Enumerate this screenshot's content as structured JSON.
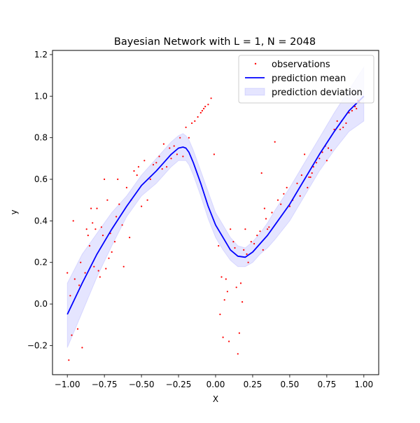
{
  "chart_data": {
    "type": "scatter",
    "title": "Bayesian Network with L = 1, N = 2048",
    "xlabel": "X",
    "ylabel": "y",
    "xlim": [
      -1.1,
      1.1
    ],
    "ylim": [
      -0.34,
      1.22
    ],
    "xticks": [
      -1.0,
      -0.75,
      -0.5,
      -0.25,
      0.0,
      0.25,
      0.5,
      0.75,
      1.0
    ],
    "xtick_labels": [
      "−1.00",
      "−0.75",
      "−0.50",
      "−0.25",
      "0.00",
      "0.25",
      "0.50",
      "0.75",
      "1.00"
    ],
    "yticks": [
      -0.2,
      0.0,
      0.2,
      0.4,
      0.6,
      0.8,
      1.0,
      1.2
    ],
    "ytick_labels": [
      "−0.2",
      "0.0",
      "0.2",
      "0.4",
      "0.6",
      "0.8",
      "1.0",
      "1.2"
    ],
    "grid": false,
    "legend_position": "upper-right",
    "colors": {
      "observations": "#ff0000",
      "mean": "#0000ff",
      "deviation": "#0000ff"
    },
    "series": [
      {
        "name": "observations",
        "kind": "scatter",
        "x": [
          -1.0,
          -0.99,
          -0.98,
          -0.97,
          -0.96,
          -0.95,
          -0.93,
          -0.92,
          -0.91,
          -0.9,
          -0.88,
          -0.87,
          -0.86,
          -0.85,
          -0.84,
          -0.83,
          -0.82,
          -0.81,
          -0.8,
          -0.79,
          -0.78,
          -0.77,
          -0.76,
          -0.75,
          -0.74,
          -0.73,
          -0.72,
          -0.71,
          -0.7,
          -0.68,
          -0.67,
          -0.66,
          -0.65,
          -0.63,
          -0.62,
          -0.6,
          -0.58,
          -0.57,
          -0.55,
          -0.53,
          -0.52,
          -0.5,
          -0.48,
          -0.46,
          -0.44,
          -0.42,
          -0.4,
          -0.38,
          -0.36,
          -0.35,
          -0.33,
          -0.31,
          -0.3,
          -0.28,
          -0.26,
          -0.24,
          -0.22,
          -0.2,
          -0.18,
          -0.16,
          -0.14,
          -0.12,
          -0.1,
          -0.09,
          -0.08,
          -0.07,
          -0.05,
          -0.03,
          -0.01,
          0.02,
          0.03,
          0.04,
          0.05,
          0.06,
          0.07,
          0.08,
          0.09,
          0.1,
          0.12,
          0.13,
          0.14,
          0.15,
          0.16,
          0.17,
          0.18,
          0.19,
          0.2,
          0.21,
          0.22,
          0.24,
          0.26,
          0.28,
          0.3,
          0.31,
          0.32,
          0.33,
          0.34,
          0.35,
          0.36,
          0.38,
          0.4,
          0.42,
          0.44,
          0.46,
          0.48,
          0.5,
          0.52,
          0.55,
          0.57,
          0.58,
          0.6,
          0.62,
          0.63,
          0.64,
          0.65,
          0.66,
          0.68,
          0.7,
          0.72,
          0.74,
          0.75,
          0.76,
          0.78,
          0.8,
          0.82,
          0.84,
          0.85,
          0.86,
          0.88,
          0.9,
          0.92,
          0.94,
          0.95,
          0.96,
          0.97
        ],
        "y": [
          0.15,
          -0.27,
          0.04,
          -0.15,
          0.4,
          0.12,
          -0.12,
          0.09,
          0.2,
          -0.21,
          0.15,
          0.36,
          0.33,
          0.28,
          0.46,
          0.39,
          0.18,
          0.36,
          0.46,
          0.16,
          0.13,
          0.37,
          0.33,
          0.6,
          0.17,
          0.5,
          0.22,
          0.34,
          0.25,
          0.3,
          0.42,
          0.6,
          0.48,
          0.38,
          0.18,
          0.56,
          0.32,
          0.5,
          0.64,
          0.62,
          0.66,
          0.47,
          0.69,
          0.5,
          0.6,
          0.67,
          0.68,
          0.71,
          0.65,
          0.77,
          0.66,
          0.75,
          0.7,
          0.76,
          0.72,
          0.8,
          0.71,
          0.85,
          0.8,
          0.87,
          0.88,
          0.9,
          0.92,
          0.93,
          0.94,
          0.95,
          0.96,
          0.99,
          0.72,
          0.28,
          -0.05,
          0.13,
          -0.16,
          0.02,
          0.12,
          0.06,
          -0.18,
          0.36,
          0.3,
          0.27,
          0.08,
          -0.24,
          -0.14,
          0.1,
          0.01,
          0.26,
          0.36,
          0.24,
          0.2,
          0.3,
          0.29,
          0.33,
          0.35,
          0.63,
          0.26,
          0.46,
          0.41,
          0.36,
          0.37,
          0.44,
          0.78,
          0.5,
          0.48,
          0.53,
          0.56,
          0.47,
          0.5,
          0.58,
          0.52,
          0.62,
          0.72,
          0.56,
          0.61,
          0.61,
          0.63,
          0.66,
          0.68,
          0.7,
          0.73,
          0.76,
          0.69,
          0.75,
          0.74,
          0.84,
          0.88,
          0.84,
          0.88,
          0.85,
          0.87,
          0.92,
          0.93,
          0.95,
          0.94,
          0.98,
          0.97
        ]
      },
      {
        "name": "prediction mean",
        "kind": "line",
        "x": [
          -1.0,
          -0.9,
          -0.8,
          -0.7,
          -0.6,
          -0.5,
          -0.4,
          -0.35,
          -0.3,
          -0.25,
          -0.22,
          -0.2,
          -0.18,
          -0.15,
          -0.1,
          -0.05,
          0.0,
          0.05,
          0.1,
          0.15,
          0.2,
          0.25,
          0.3,
          0.35,
          0.4,
          0.5,
          0.6,
          0.7,
          0.8,
          0.9,
          1.0
        ],
        "y": [
          -0.05,
          0.1,
          0.24,
          0.36,
          0.47,
          0.57,
          0.64,
          0.68,
          0.72,
          0.75,
          0.755,
          0.75,
          0.73,
          0.68,
          0.58,
          0.47,
          0.38,
          0.32,
          0.26,
          0.23,
          0.225,
          0.25,
          0.29,
          0.33,
          0.38,
          0.48,
          0.6,
          0.72,
          0.83,
          0.93,
          1.0
        ]
      },
      {
        "name": "prediction deviation",
        "kind": "band",
        "x": [
          -1.0,
          -0.9,
          -0.8,
          -0.7,
          -0.6,
          -0.5,
          -0.4,
          -0.35,
          -0.3,
          -0.25,
          -0.22,
          -0.2,
          -0.18,
          -0.15,
          -0.1,
          -0.05,
          0.0,
          0.05,
          0.1,
          0.15,
          0.2,
          0.25,
          0.3,
          0.35,
          0.4,
          0.5,
          0.6,
          0.7,
          0.8,
          0.9,
          1.0
        ],
        "upper": [
          0.1,
          0.24,
          0.34,
          0.44,
          0.52,
          0.62,
          0.7,
          0.74,
          0.78,
          0.81,
          0.82,
          0.81,
          0.79,
          0.74,
          0.64,
          0.54,
          0.44,
          0.38,
          0.32,
          0.28,
          0.27,
          0.3,
          0.34,
          0.39,
          0.45,
          0.56,
          0.68,
          0.8,
          0.92,
          1.03,
          1.14
        ],
        "lower": [
          -0.21,
          -0.04,
          0.13,
          0.28,
          0.42,
          0.52,
          0.58,
          0.62,
          0.66,
          0.69,
          0.69,
          0.69,
          0.67,
          0.62,
          0.52,
          0.41,
          0.32,
          0.26,
          0.21,
          0.18,
          0.18,
          0.2,
          0.24,
          0.27,
          0.31,
          0.4,
          0.52,
          0.64,
          0.74,
          0.83,
          0.88
        ]
      }
    ]
  }
}
